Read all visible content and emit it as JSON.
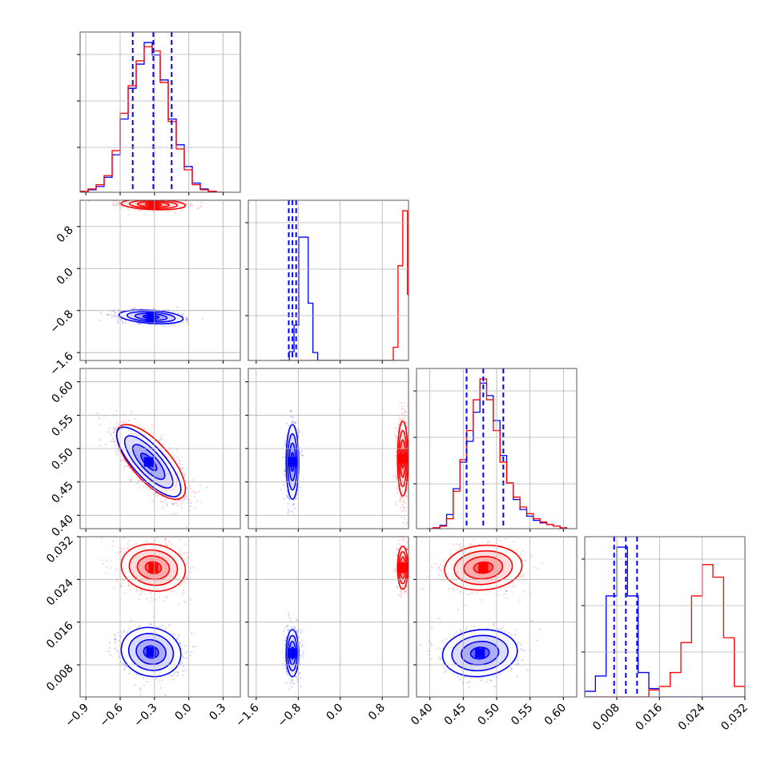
{
  "colors": {
    "blue": "#0000ff",
    "red": "#ff0000"
  },
  "chart_data": {
    "type": "corner",
    "grid": true,
    "params": [
      {
        "range": [
          -0.95,
          0.45
        ],
        "ticks": [
          -0.9,
          -0.6,
          -0.3,
          0.0,
          0.3
        ],
        "tick_labels": [
          "−0.9",
          "−0.6",
          "−0.3",
          "0.0",
          "0.3"
        ]
      },
      {
        "range": [
          -1.75,
          1.3
        ],
        "ticks": [
          -1.6,
          -0.8,
          0.0,
          0.8
        ],
        "tick_labels": [
          "−1.6",
          "−0.8",
          "0.0",
          "0.8"
        ]
      },
      {
        "range": [
          0.38,
          0.62
        ],
        "ticks": [
          0.4,
          0.45,
          0.5,
          0.55,
          0.6
        ],
        "tick_labels": [
          "0.40",
          "0.45",
          "0.50",
          "0.55",
          "0.60"
        ]
      },
      {
        "range": [
          0.002,
          0.032
        ],
        "ticks": [
          0.008,
          0.016,
          0.024,
          0.032
        ],
        "tick_labels": [
          "0.008",
          "0.016",
          "0.024",
          "0.032"
        ]
      }
    ],
    "quantiles_blue": [
      [
        -0.49,
        -0.31,
        -0.15
      ],
      [
        -0.98,
        -0.91,
        -0.84
      ],
      [
        0.455,
        0.48,
        0.51
      ],
      [
        0.0075,
        0.0097,
        0.0118
      ]
    ],
    "histograms": [
      {
        "edges": [
          -0.95,
          -0.88,
          -0.81,
          -0.74,
          -0.67,
          -0.6,
          -0.53,
          -0.46,
          -0.39,
          -0.32,
          -0.25,
          -0.18,
          -0.11,
          -0.04,
          0.03,
          0.1,
          0.17,
          0.24,
          0.31
        ],
        "blue": [
          1,
          3,
          7,
          18,
          45,
          88,
          125,
          154,
          180,
          165,
          135,
          88,
          57,
          31,
          11,
          4,
          1,
          0
        ],
        "red": [
          1,
          4,
          9,
          20,
          50,
          95,
          128,
          158,
          175,
          170,
          132,
          85,
          52,
          27,
          9,
          3,
          1,
          0
        ]
      },
      {
        "edges": [
          -1.15,
          -1.06,
          -0.97,
          -0.88,
          -0.79,
          -0.7,
          -0.61,
          -0.52,
          -0.43,
          -0.34,
          -0.25,
          -0.16,
          -0.07,
          0.02,
          0.11,
          0.2,
          0.29,
          0.38,
          0.47,
          0.56,
          0.65,
          0.74,
          0.83,
          0.92,
          1.01,
          1.1,
          1.19,
          1.28,
          1.37
        ],
        "blue": [
          0,
          0,
          20,
          80,
          280,
          280,
          130,
          18,
          0,
          0,
          0,
          0,
          0,
          0,
          0,
          0,
          0,
          0,
          0,
          0,
          0,
          0,
          0,
          0,
          0,
          0,
          0,
          0
        ],
        "red": [
          0,
          0,
          0,
          0,
          0,
          0,
          0,
          0,
          0,
          0,
          0,
          0,
          0,
          0,
          0,
          0,
          0,
          0,
          0,
          0,
          0,
          0,
          0,
          0,
          30,
          215,
          340,
          150
        ]
      },
      {
        "edges": [
          0.395,
          0.405,
          0.415,
          0.425,
          0.435,
          0.445,
          0.455,
          0.465,
          0.475,
          0.485,
          0.495,
          0.505,
          0.515,
          0.525,
          0.535,
          0.545,
          0.555,
          0.565,
          0.575,
          0.585,
          0.595,
          0.605
        ],
        "blue": [
          0,
          1,
          4,
          17,
          48,
          80,
          105,
          140,
          175,
          160,
          130,
          88,
          55,
          35,
          23,
          15,
          10,
          7,
          5,
          3,
          1
        ],
        "red": [
          0,
          1,
          3,
          12,
          45,
          83,
          118,
          155,
          180,
          155,
          118,
          80,
          55,
          38,
          26,
          18,
          12,
          8,
          5,
          3,
          1
        ]
      },
      {
        "edges": [
          0.002,
          0.004,
          0.006,
          0.008,
          0.01,
          0.012,
          0.014,
          0.016,
          0.018,
          0.02,
          0.022,
          0.024,
          0.026,
          0.028,
          0.03,
          0.032
        ],
        "blue": [
          8,
          30,
          145,
          215,
          145,
          35,
          12,
          0,
          0,
          0,
          0,
          0,
          0,
          0,
          0
        ],
        "red": [
          0,
          0,
          0,
          0,
          0,
          0,
          10,
          15,
          35,
          78,
          145,
          190,
          172,
          85,
          15
        ]
      }
    ],
    "scatter_panels": [
      {
        "row": 1,
        "col": 0,
        "blue": {
          "center": [
            -0.33,
            -0.92
          ],
          "sd": [
            0.14,
            0.065
          ],
          "rho": -0.3
        },
        "red": {
          "center": [
            -0.31,
            1.22
          ],
          "sd": [
            0.14,
            0.05
          ],
          "rho": -0.2
        }
      },
      {
        "row": 2,
        "col": 0,
        "blue": {
          "center": [
            -0.35,
            0.48
          ],
          "sd": [
            0.14,
            0.026
          ],
          "rho": -0.78
        },
        "red": {
          "center": [
            -0.33,
            0.48
          ],
          "sd": [
            0.15,
            0.028
          ],
          "rho": -0.72
        }
      },
      {
        "row": 2,
        "col": 1,
        "blue": {
          "center": [
            -0.91,
            0.48
          ],
          "sd": [
            0.06,
            0.028
          ],
          "rho": 0.0
        },
        "red": {
          "center": [
            1.19,
            0.485
          ],
          "sd": [
            0.05,
            0.028
          ],
          "rho": 0.0
        }
      },
      {
        "row": 3,
        "col": 0,
        "blue": {
          "center": [
            -0.33,
            0.0104
          ],
          "sd": [
            0.13,
            0.0023
          ],
          "rho": -0.1
        },
        "red": {
          "center": [
            -0.31,
            0.0262
          ],
          "sd": [
            0.14,
            0.0022
          ],
          "rho": -0.1
        }
      },
      {
        "row": 3,
        "col": 1,
        "blue": {
          "center": [
            -0.91,
            0.0102
          ],
          "sd": [
            0.06,
            0.0022
          ],
          "rho": 0.0
        },
        "red": {
          "center": [
            1.19,
            0.0262
          ],
          "sd": [
            0.05,
            0.002
          ],
          "rho": 0.0
        }
      },
      {
        "row": 3,
        "col": 2,
        "blue": {
          "center": [
            0.475,
            0.0102
          ],
          "sd": [
            0.028,
            0.0022
          ],
          "rho": 0.1
        },
        "red": {
          "center": [
            0.48,
            0.0262
          ],
          "sd": [
            0.029,
            0.0021
          ],
          "rho": 0.1
        }
      }
    ]
  }
}
